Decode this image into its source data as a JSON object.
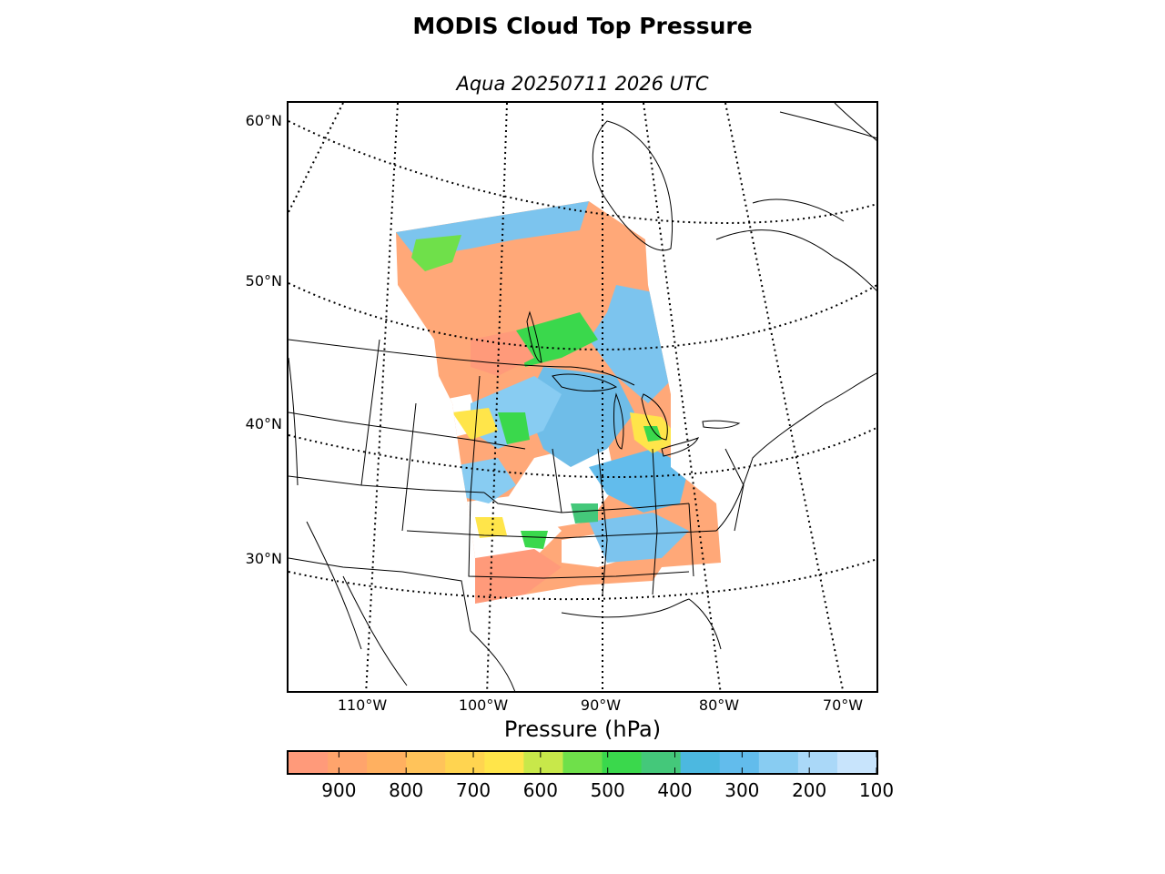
{
  "figure": {
    "title": "MODIS Cloud Top Pressure",
    "subtitle": "Aqua 20250711 2026 UTC"
  },
  "map": {
    "lat_labels": [
      "60°N",
      "50°N",
      "40°N",
      "30°N"
    ],
    "lon_labels": [
      "110°W",
      "100°W",
      "90°W",
      "80°W",
      "70°W"
    ],
    "latitudes": [
      60,
      50,
      40,
      30
    ],
    "longitudes": [
      -110,
      -100,
      -90,
      -80,
      -70
    ],
    "gridline_style": "dotted",
    "coastlines": true,
    "state_borders": true
  },
  "colorbar": {
    "label": "Pressure (hPa)",
    "tick_labels": [
      "900",
      "800",
      "700",
      "600",
      "500",
      "400",
      "300",
      "200",
      "100"
    ],
    "ticks": [
      900,
      800,
      700,
      600,
      500,
      400,
      300,
      200,
      100
    ],
    "range": [
      975,
      100
    ],
    "colors": [
      "#ff9a7a",
      "#ffa46c",
      "#ffb060",
      "#ffc35a",
      "#ffd450",
      "#ffe54a",
      "#c8e84a",
      "#6fe04a",
      "#3ad84c",
      "#44c87a",
      "#4cb8e0",
      "#62bcec",
      "#88ccf2",
      "#aad8f8",
      "#c8e4fc"
    ]
  },
  "chart_data": {
    "type": "heatmap",
    "title": "MODIS Cloud Top Pressure",
    "subtitle": "Aqua 20250711 2026 UTC",
    "colorbar_label": "Pressure (hPa)",
    "value_range": [
      975,
      100
    ],
    "colorbar_ticks": [
      900,
      800,
      700,
      600,
      500,
      400,
      300,
      200,
      100
    ],
    "latitude_ticks": [
      60,
      50,
      40,
      30
    ],
    "longitude_ticks": [
      -110,
      -100,
      -90,
      -80,
      -70
    ]
  }
}
